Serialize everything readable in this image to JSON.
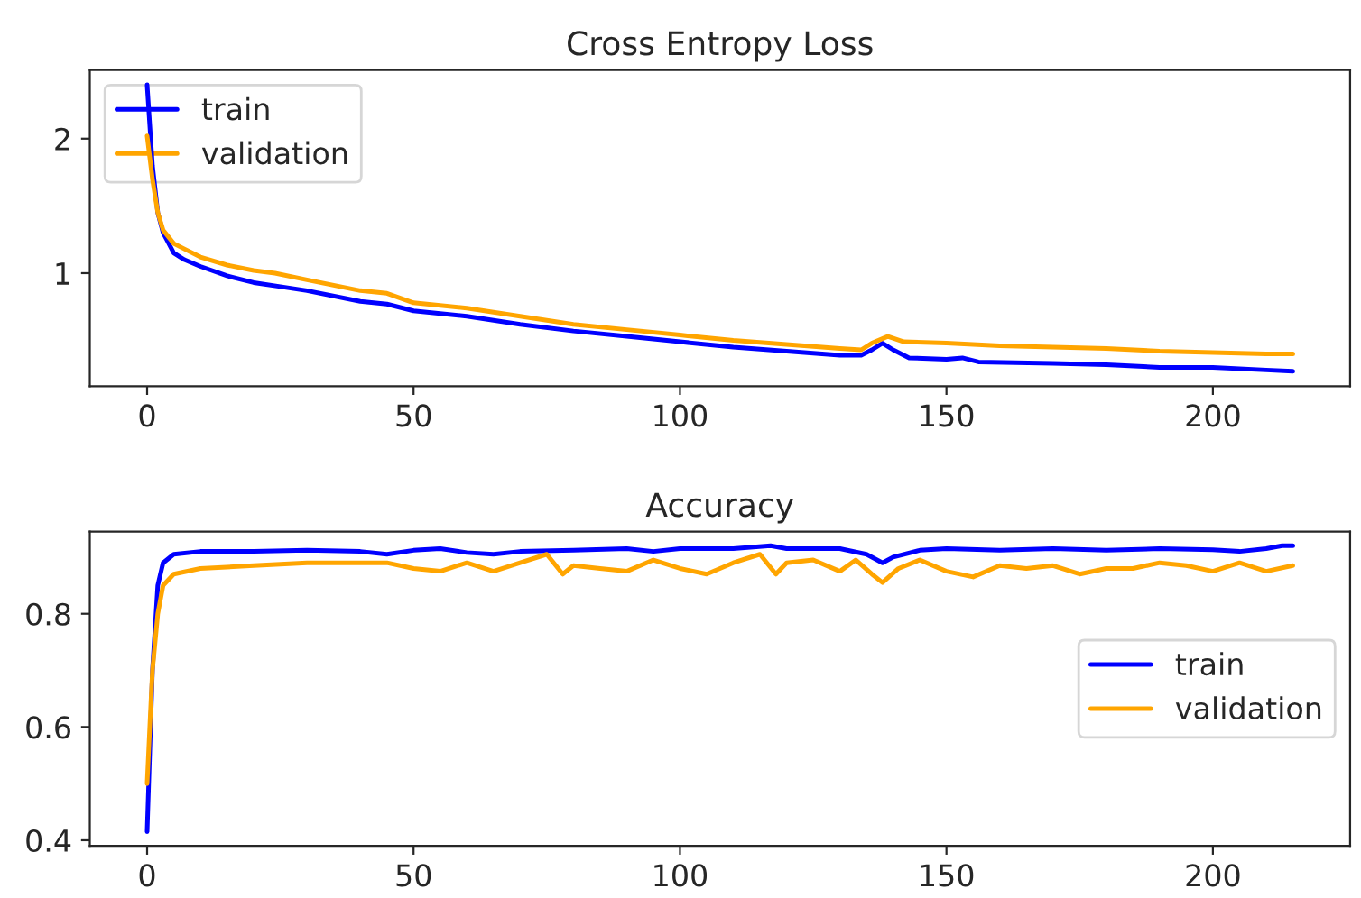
{
  "chart_data": [
    {
      "type": "line",
      "title": "Cross Entropy Loss",
      "legend": "top left",
      "grid": false,
      "xlim": [
        -10.75,
        225.75
      ],
      "xticks": [
        0,
        50,
        100,
        150,
        200
      ],
      "ylim": [
        0.16,
        2.51
      ],
      "yticks": [
        1,
        2
      ],
      "series": [
        {
          "name": "train",
          "color": "#0000ff",
          "x": [
            0,
            1,
            2,
            3,
            5,
            7,
            10,
            15,
            20,
            25,
            30,
            40,
            45,
            50,
            60,
            70,
            80,
            90,
            100,
            110,
            120,
            130,
            134,
            136,
            138,
            140,
            143,
            150,
            153,
            156,
            170,
            180,
            190,
            200,
            210,
            215
          ],
          "values": [
            2.4,
            1.8,
            1.45,
            1.3,
            1.15,
            1.1,
            1.05,
            0.98,
            0.93,
            0.9,
            0.87,
            0.79,
            0.77,
            0.72,
            0.68,
            0.62,
            0.57,
            0.53,
            0.49,
            0.45,
            0.42,
            0.39,
            0.39,
            0.43,
            0.48,
            0.43,
            0.37,
            0.36,
            0.37,
            0.34,
            0.33,
            0.32,
            0.3,
            0.3,
            0.28,
            0.27
          ]
        },
        {
          "name": "validation",
          "color": "#ffa500",
          "x": [
            0,
            1,
            2,
            3,
            5,
            7,
            10,
            15,
            20,
            24,
            30,
            40,
            45,
            50,
            60,
            70,
            80,
            90,
            100,
            110,
            120,
            130,
            134,
            136,
            139,
            142,
            150,
            160,
            170,
            180,
            190,
            200,
            210,
            215
          ],
          "values": [
            2.02,
            1.7,
            1.45,
            1.32,
            1.22,
            1.18,
            1.12,
            1.06,
            1.02,
            1.0,
            0.95,
            0.87,
            0.85,
            0.78,
            0.74,
            0.68,
            0.62,
            0.58,
            0.54,
            0.5,
            0.47,
            0.44,
            0.43,
            0.48,
            0.53,
            0.49,
            0.48,
            0.46,
            0.45,
            0.44,
            0.42,
            0.41,
            0.4,
            0.4
          ]
        }
      ]
    },
    {
      "type": "line",
      "title": "Accuracy",
      "legend": "right",
      "grid": false,
      "xlim": [
        -10.75,
        225.75
      ],
      "xticks": [
        0,
        50,
        100,
        150,
        200
      ],
      "ylim": [
        0.39,
        0.945
      ],
      "yticks": [
        0.4,
        0.6,
        0.8
      ],
      "series": [
        {
          "name": "train",
          "color": "#0000ff",
          "x": [
            0,
            1,
            2,
            3,
            5,
            10,
            20,
            30,
            40,
            45,
            50,
            55,
            60,
            65,
            70,
            80,
            90,
            95,
            100,
            110,
            117,
            120,
            130,
            135,
            138,
            140,
            145,
            150,
            160,
            170,
            180,
            190,
            200,
            205,
            210,
            213,
            215
          ],
          "values": [
            0.415,
            0.7,
            0.85,
            0.89,
            0.905,
            0.91,
            0.91,
            0.912,
            0.91,
            0.905,
            0.912,
            0.915,
            0.908,
            0.905,
            0.91,
            0.912,
            0.915,
            0.91,
            0.915,
            0.915,
            0.92,
            0.915,
            0.915,
            0.905,
            0.89,
            0.9,
            0.912,
            0.915,
            0.912,
            0.915,
            0.912,
            0.915,
            0.913,
            0.91,
            0.915,
            0.92,
            0.92
          ]
        },
        {
          "name": "validation",
          "color": "#ffa500",
          "x": [
            0,
            1,
            2,
            3,
            5,
            10,
            20,
            30,
            40,
            45,
            50,
            55,
            60,
            65,
            70,
            75,
            78,
            80,
            85,
            90,
            95,
            100,
            105,
            110,
            115,
            118,
            120,
            125,
            130,
            133,
            136,
            138,
            141,
            145,
            150,
            155,
            160,
            165,
            170,
            175,
            180,
            185,
            190,
            195,
            200,
            205,
            210,
            215
          ],
          "values": [
            0.5,
            0.7,
            0.8,
            0.85,
            0.87,
            0.88,
            0.885,
            0.89,
            0.89,
            0.89,
            0.88,
            0.875,
            0.89,
            0.875,
            0.89,
            0.905,
            0.87,
            0.885,
            0.88,
            0.875,
            0.895,
            0.88,
            0.87,
            0.89,
            0.905,
            0.87,
            0.89,
            0.895,
            0.875,
            0.895,
            0.87,
            0.855,
            0.88,
            0.895,
            0.875,
            0.865,
            0.885,
            0.88,
            0.885,
            0.87,
            0.88,
            0.88,
            0.89,
            0.885,
            0.875,
            0.89,
            0.875,
            0.885
          ]
        }
      ]
    }
  ]
}
